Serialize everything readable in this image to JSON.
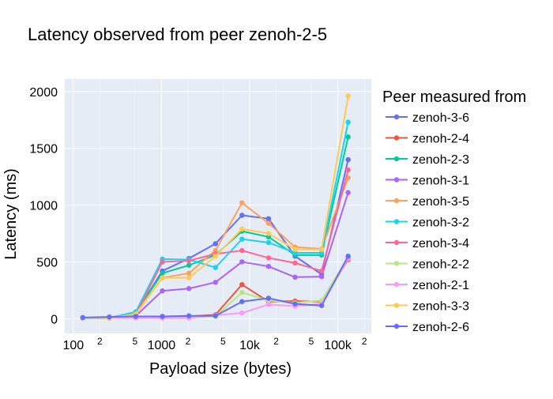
{
  "chart_data": {
    "type": "line",
    "title": "Latency observed from peer zenoh-2-5",
    "xlabel": "Payload size (bytes)",
    "ylabel": "Latency (ms)",
    "x_scale": "log",
    "xlim": [
      80,
      240000
    ],
    "ylim": [
      -130,
      2110
    ],
    "x_major_ticks": [
      {
        "value": 100,
        "label": "100"
      },
      {
        "value": 1000,
        "label": "1000"
      },
      {
        "value": 10000,
        "label": "10k"
      },
      {
        "value": 100000,
        "label": "100k"
      }
    ],
    "x_minor_ticks": [
      {
        "value": 200,
        "label": "2"
      },
      {
        "value": 500,
        "label": "5"
      },
      {
        "value": 2000,
        "label": "2"
      },
      {
        "value": 5000,
        "label": "5"
      },
      {
        "value": 20000,
        "label": "2"
      },
      {
        "value": 50000,
        "label": "5"
      },
      {
        "value": 200000,
        "label": "2"
      }
    ],
    "y_ticks": [
      0,
      500,
      1000,
      1500,
      2000
    ],
    "legend_title": "Peer measured from",
    "legend_position": "right",
    "grid": true,
    "background": "#e5ecf6",
    "x": [
      128,
      256,
      512,
      1024,
      2048,
      4096,
      8192,
      16384,
      32768,
      65536,
      131072
    ],
    "series": [
      {
        "name": "zenoh-3-6",
        "color": "#636efa",
        "values": [
          5,
          10,
          50,
          420,
          530,
          660,
          910,
          880,
          550,
          390,
          1400
        ]
      },
      {
        "name": "zenoh-2-4",
        "color": "#ef553b",
        "values": [
          8,
          8,
          10,
          15,
          20,
          35,
          300,
          150,
          155,
          150,
          520
        ]
      },
      {
        "name": "zenoh-2-3",
        "color": "#00cc96",
        "values": [
          5,
          5,
          60,
          400,
          470,
          560,
          770,
          720,
          560,
          560,
          1600
        ]
      },
      {
        "name": "zenoh-3-1",
        "color": "#ab63fa",
        "values": [
          5,
          5,
          25,
          245,
          265,
          320,
          500,
          460,
          365,
          370,
          1110
        ]
      },
      {
        "name": "zenoh-3-5",
        "color": "#ffa15a",
        "values": [
          5,
          5,
          50,
          360,
          400,
          600,
          1020,
          840,
          630,
          615,
          1240
        ]
      },
      {
        "name": "zenoh-3-2",
        "color": "#19d3f3",
        "values": [
          5,
          5,
          60,
          525,
          520,
          450,
          700,
          670,
          580,
          580,
          1730
        ]
      },
      {
        "name": "zenoh-3-4",
        "color": "#ff6692",
        "values": [
          5,
          5,
          35,
          500,
          510,
          570,
          600,
          535,
          490,
          420,
          1310
        ]
      },
      {
        "name": "zenoh-2-2",
        "color": "#b6e880",
        "values": [
          5,
          5,
          10,
          10,
          10,
          20,
          230,
          160,
          140,
          160,
          540
        ]
      },
      {
        "name": "zenoh-2-1",
        "color": "#ff97ff",
        "values": [
          5,
          5,
          5,
          5,
          5,
          30,
          50,
          125,
          110,
          130,
          530
        ]
      },
      {
        "name": "zenoh-3-3",
        "color": "#fecb52",
        "values": [
          5,
          5,
          40,
          360,
          360,
          550,
          790,
          750,
          610,
          610,
          1960
        ]
      },
      {
        "name": "zenoh-2-6",
        "color": "#636efa",
        "values": [
          10,
          15,
          20,
          20,
          25,
          25,
          150,
          180,
          130,
          115,
          550
        ]
      }
    ]
  }
}
